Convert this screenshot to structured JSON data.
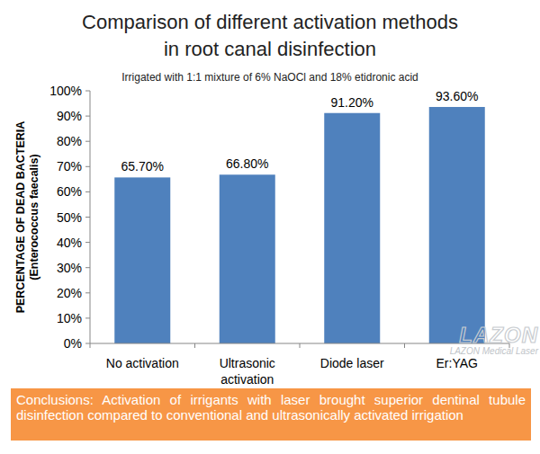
{
  "chart_data": {
    "type": "bar",
    "title": [
      "Comparison of different activation methods",
      "in root canal disinfection"
    ],
    "subtitle": "Irrigated with 1:1 mixture of 6% NaOCl and 18% etidronic acid",
    "y_label": [
      "PERCENTAGE OF DEAD BACTERIA",
      "(Enterococcus faecalis)"
    ],
    "categories": [
      "No activation",
      "Ultrasonic activation",
      "Diode laser",
      "Er:YAG"
    ],
    "values": [
      65.7,
      66.8,
      91.2,
      93.6
    ],
    "value_labels": [
      "65.70%",
      "66.80%",
      "91.20%",
      "93.60%"
    ],
    "data_labels": true,
    "color": "#4f81bd",
    "ylim": [
      0,
      100
    ],
    "yticks": [
      {
        "value": 0,
        "label": "0%"
      },
      {
        "value": 10,
        "label": "10%"
      },
      {
        "value": 20,
        "label": "20%"
      },
      {
        "value": 30,
        "label": "30%"
      },
      {
        "value": 40,
        "label": "40%"
      },
      {
        "value": 50,
        "label": "50%"
      },
      {
        "value": 60,
        "label": "60%"
      },
      {
        "value": 70,
        "label": "70%"
      },
      {
        "value": 80,
        "label": "80%"
      },
      {
        "value": 90,
        "label": "90%"
      },
      {
        "value": 100,
        "label": "100%"
      }
    ],
    "grid": false,
    "watermark": {
      "logo": "LAZON",
      "text": "LAZON Medical Laser"
    },
    "conclusion": "Conclusions: Activation of irrigants with laser brought superior dentinal tubule disinfection compared to conventional and ultrasonically activated irrigation"
  }
}
